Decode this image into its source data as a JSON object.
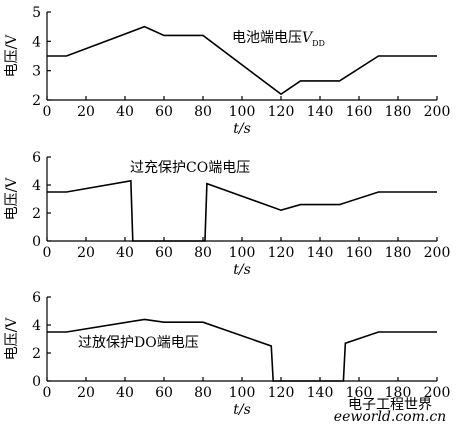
{
  "chart_data": [
    {
      "type": "line",
      "annotation": "电池端电压",
      "annotation_var": "V",
      "annotation_sub": "DD",
      "ylabel": "电压/V",
      "xlabel": "t/s",
      "color": "#000000",
      "x": [
        0,
        10,
        50,
        60,
        80,
        120,
        130,
        150,
        170,
        200
      ],
      "values": [
        3.5,
        3.5,
        4.5,
        4.2,
        4.2,
        2.2,
        2.65,
        2.65,
        3.5,
        3.5
      ],
      "xlim": [
        0,
        200
      ],
      "xticks": [
        0,
        20,
        40,
        60,
        80,
        100,
        120,
        140,
        160,
        180,
        200
      ],
      "ylim": [
        2,
        5
      ],
      "yticks": [
        2,
        3,
        4,
        5
      ]
    },
    {
      "type": "line",
      "annotation": "过充保护CO端电压",
      "ylabel": "电压/V",
      "xlabel": "t/s",
      "color": "#000000",
      "x": [
        0,
        10,
        43,
        44,
        81,
        82,
        120,
        130,
        150,
        170,
        200
      ],
      "values": [
        3.5,
        3.5,
        4.3,
        0,
        0,
        4.1,
        2.2,
        2.6,
        2.6,
        3.5,
        3.5
      ],
      "xlim": [
        0,
        200
      ],
      "xticks": [
        0,
        20,
        40,
        60,
        80,
        100,
        120,
        140,
        160,
        180,
        200
      ],
      "ylim": [
        0,
        6
      ],
      "yticks": [
        0,
        2,
        4,
        6
      ]
    },
    {
      "type": "line",
      "annotation": "过放保护DO端电压",
      "ylabel": "电压/V",
      "xlabel": "t/s",
      "color": "#000000",
      "x": [
        0,
        10,
        50,
        60,
        80,
        115,
        116,
        152,
        153,
        170,
        200
      ],
      "values": [
        3.5,
        3.5,
        4.4,
        4.2,
        4.2,
        2.5,
        0,
        0,
        2.7,
        3.5,
        3.5
      ],
      "xlim": [
        0,
        200
      ],
      "xticks": [
        0,
        20,
        40,
        60,
        80,
        100,
        120,
        140,
        160,
        180,
        200
      ],
      "ylim": [
        0,
        6
      ],
      "yticks": [
        0,
        2,
        4,
        6
      ]
    }
  ],
  "watermark": {
    "title": "电子工程世界",
    "url": "eeworld.com.cn"
  }
}
